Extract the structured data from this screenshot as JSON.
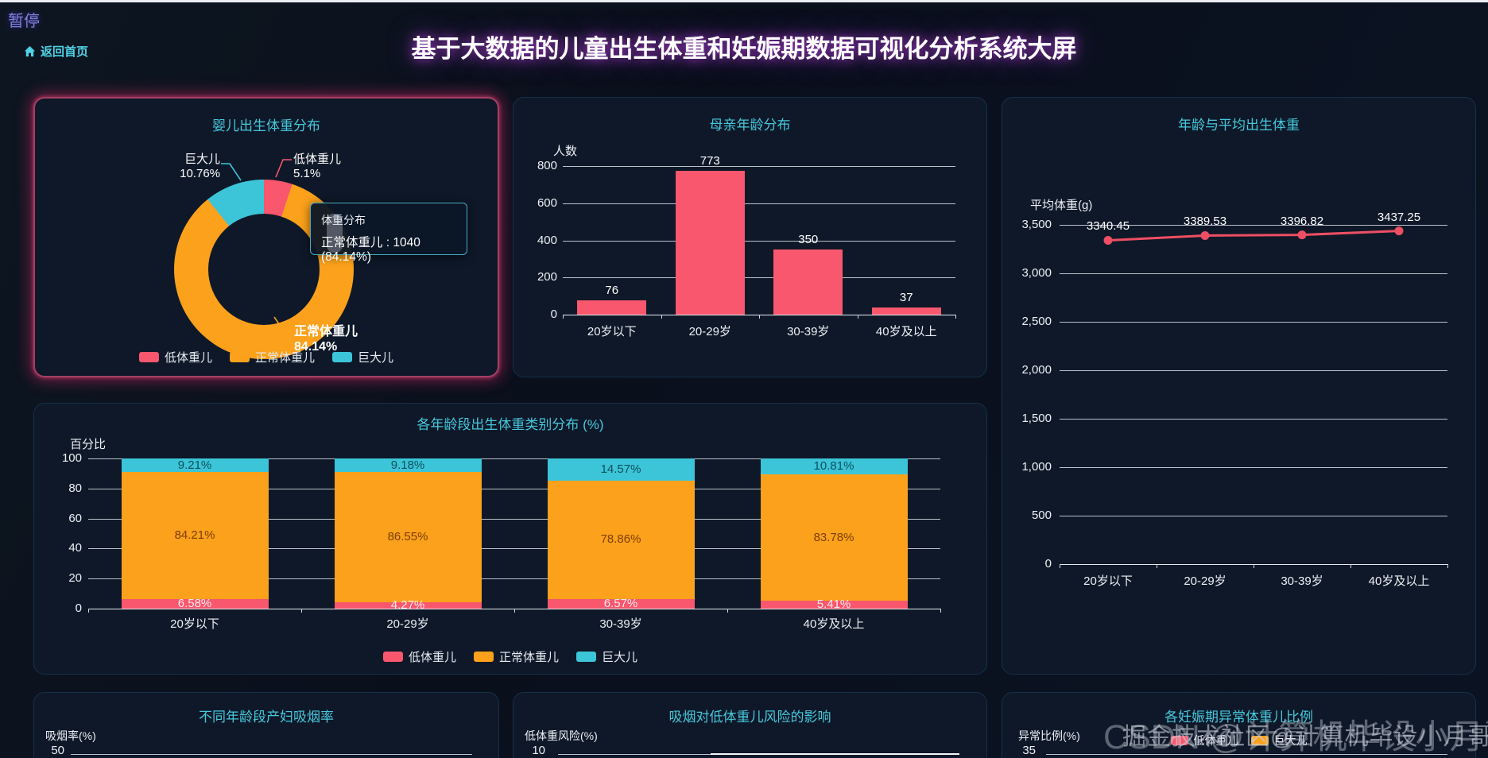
{
  "header": {
    "pause_label": "暂停",
    "back_home_label": "返回首页",
    "main_title": "基于大数据的儿童出生体重和妊娠期数据可视化分析系统大屏"
  },
  "watermarks": {
    "layer1": "掘金技术社区@计算机毕设小月哥",
    "layer2": "CSDN @计算机毕设小月哥"
  },
  "colors": {
    "low_weight_red": "#f8576d",
    "normal_weight_orange": "#fba11b",
    "macrosomia_cyan": "#3cc5d8",
    "line_red": "#ee4e63",
    "accent_cyan": "#46c8dc",
    "panel_bg": "#0e1828",
    "title_glow_purple": "#a53ccd"
  },
  "chart_data": [
    {
      "id": "birth-weight-distribution",
      "type": "pie",
      "title": "婴儿出生体重分布",
      "series_name": "体重分布",
      "slices": [
        {
          "name": "低体重儿",
          "percent": 5.1,
          "percent_label": "5.1%",
          "color": "#f8576d"
        },
        {
          "name": "正常体重儿",
          "percent": 84.14,
          "percent_label": "84.14%",
          "count": 1040,
          "color": "#fba11b"
        },
        {
          "name": "巨大儿",
          "percent": 10.76,
          "percent_label": "10.76%",
          "color": "#3cc5d8"
        }
      ],
      "tooltip": {
        "title": "体重分布",
        "text": "正常体重儿 : 1040 (84.14%)"
      },
      "legend": [
        "低体重儿",
        "正常体重儿",
        "巨大儿"
      ]
    },
    {
      "id": "mother-age-distribution",
      "type": "bar",
      "title": "母亲年龄分布",
      "ylabel": "人数",
      "categories": [
        "20岁以下",
        "20-29岁",
        "30-39岁",
        "40岁及以上"
      ],
      "values": [
        76,
        773,
        350,
        37
      ],
      "yticks": [
        0,
        200,
        400,
        600,
        800
      ],
      "ylim": [
        0,
        800
      ],
      "bar_color": "#f8576d",
      "grid": true
    },
    {
      "id": "age-avg-birth-weight",
      "type": "line",
      "title": "年龄与平均出生体重",
      "ylabel": "平均体重(g)",
      "categories": [
        "20岁以下",
        "20-29岁",
        "30-39岁",
        "40岁及以上"
      ],
      "values": [
        3340.45,
        3389.53,
        3396.82,
        3437.25
      ],
      "yticks": [
        0,
        500,
        1000,
        1500,
        2000,
        2500,
        3000,
        3500
      ],
      "ylim": [
        0,
        3500
      ],
      "line_color": "#ee4e63",
      "grid": true
    },
    {
      "id": "weight-category-by-age",
      "type": "bar",
      "stacked": true,
      "title": "各年龄段出生体重类别分布 (%)",
      "ylabel": "百分比",
      "categories": [
        "20岁以下",
        "20-29岁",
        "30-39岁",
        "40岁及以上"
      ],
      "series": [
        {
          "name": "低体重儿",
          "color": "#f8576d",
          "label_color": "#ffe9ee",
          "values": [
            6.58,
            4.27,
            6.57,
            5.41
          ]
        },
        {
          "name": "正常体重儿",
          "color": "#fba11b",
          "label_color": "#7c3e00",
          "values": [
            84.21,
            86.55,
            78.86,
            83.78
          ]
        },
        {
          "name": "巨大儿",
          "color": "#3cc5d8",
          "label_color": "#0f4f5c",
          "values": [
            9.21,
            9.18,
            14.57,
            10.81
          ]
        }
      ],
      "yticks": [
        0,
        20,
        40,
        60,
        80,
        100
      ],
      "ylim": [
        0,
        100
      ],
      "legend": [
        "低体重儿",
        "正常体重儿",
        "巨大儿"
      ]
    },
    {
      "id": "smoking-rate-by-age",
      "type": "bar",
      "title": "不同年龄段产妇吸烟率",
      "ylabel": "吸烟率(%)",
      "visible_ytick": "50"
    },
    {
      "id": "smoking-low-weight-risk",
      "type": "bar",
      "title": "吸烟对低体重儿风险的影响",
      "ylabel": "低体重风险(%)",
      "visible_ytick": "10"
    },
    {
      "id": "abnormal-weight-by-gestation",
      "type": "bar",
      "title": "各妊娠期异常体重儿比例",
      "ylabel": "异常比例(%)",
      "visible_ytick": "35",
      "legend": [
        {
          "name": "低体重儿",
          "color": "#f8576d"
        },
        {
          "name": "巨大儿",
          "color": "#fba11b"
        }
      ]
    }
  ]
}
